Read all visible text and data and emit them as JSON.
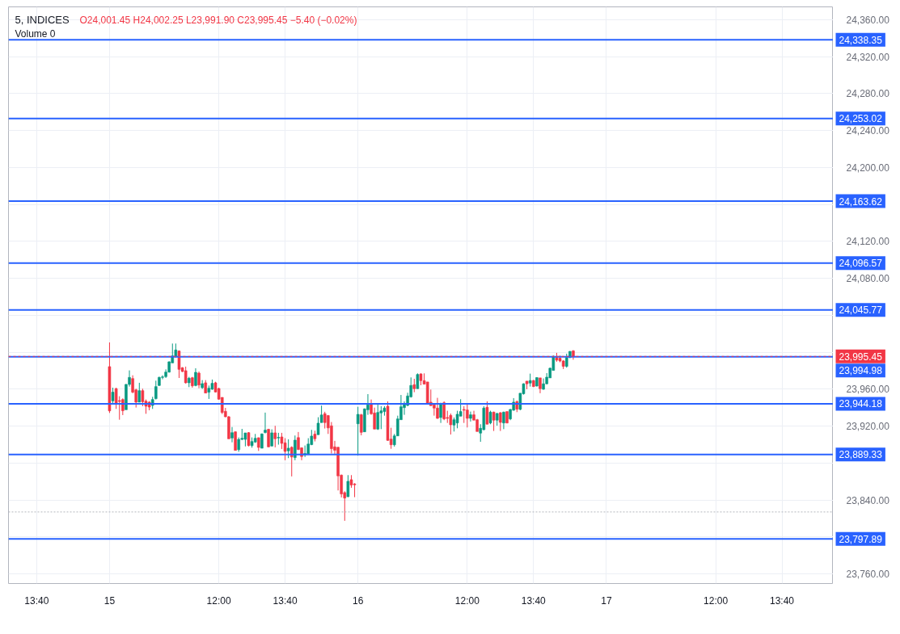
{
  "chart_data": {
    "type": "candlestick",
    "title": "5, INDICES",
    "annotations": [
      "O24,001.45 H24,002.25 L23,991.90 C23,995.45 −5.40 (−0.02%)",
      "Volume 0"
    ],
    "categories": [
      null,
      null,
      null,
      null,
      null,
      null,
      null,
      null,
      "13:40",
      null,
      null,
      null,
      null,
      null,
      null,
      null,
      null,
      null,
      null,
      null,
      null,
      null,
      null,
      null,
      null,
      null,
      null,
      null,
      null,
      null,
      "15",
      null,
      null,
      null,
      null,
      null,
      null,
      null,
      null,
      null,
      null,
      null,
      null,
      null,
      null,
      null,
      null,
      null,
      null,
      null,
      null,
      null,
      null,
      null,
      null,
      null,
      null,
      null,
      null,
      null,
      null,
      null,
      null,
      "12:00",
      null,
      null,
      null,
      null,
      null,
      null,
      null,
      null,
      null,
      null,
      null,
      null,
      null,
      null,
      null,
      null,
      null,
      null,
      null,
      "13:40",
      null,
      null,
      null,
      null,
      null,
      null,
      null,
      null,
      null,
      null,
      null,
      null,
      null,
      null,
      null,
      null,
      null,
      null,
      null,
      null,
      null,
      "16",
      null,
      null,
      null,
      null,
      null,
      null,
      null,
      null,
      null,
      null,
      null,
      null,
      null,
      null,
      null,
      null,
      null,
      null,
      null,
      null,
      null,
      null,
      null,
      null,
      null,
      null,
      null,
      null,
      null,
      null,
      null,
      null,
      "12:00",
      null,
      null,
      null,
      null,
      null,
      null,
      null,
      null,
      null,
      null,
      null,
      null,
      null,
      null,
      null,
      null,
      null,
      null,
      null,
      "13:40",
      null,
      null,
      null,
      null,
      null,
      null,
      null,
      null,
      null,
      null,
      null,
      null,
      null,
      null,
      null,
      null,
      null,
      null,
      null,
      null,
      null,
      "17",
      null,
      null,
      null,
      null,
      null,
      null,
      null,
      null,
      null,
      null,
      null,
      null,
      null,
      null,
      null,
      null,
      null,
      null,
      null,
      null,
      null,
      null,
      null,
      null,
      null,
      null,
      null,
      null,
      null,
      null,
      null,
      null,
      "12:00",
      null,
      null,
      null,
      null,
      null,
      null,
      null,
      null,
      null,
      null,
      null,
      null,
      null,
      null,
      null,
      null,
      null,
      null,
      null,
      "13:40",
      null,
      null,
      null,
      null,
      null,
      null,
      null,
      null,
      null,
      null,
      null,
      null,
      null,
      null,
      null
    ],
    "ohlc": [
      null,
      null,
      null,
      null,
      null,
      null,
      null,
      null,
      null,
      null,
      null,
      null,
      null,
      null,
      null,
      null,
      null,
      null,
      null,
      null,
      null,
      null,
      null,
      null,
      null,
      null,
      null,
      null,
      null,
      null,
      [
        23984.4,
        24010.6,
        23934.2,
        23936.5
      ],
      [
        23947.3,
        23961.6,
        23944.4,
        23956.7
      ],
      [
        23960.5,
        23961.6,
        23938.6,
        23944.4
      ],
      [
        23947.6,
        23952.3,
        23926.9,
        23946.7
      ],
      [
        23948.8,
        23950.0,
        23931.9,
        23936.6
      ],
      [
        23937.7,
        23965.7,
        23937.7,
        23965.1
      ],
      [
        23965.1,
        23980.3,
        23962.8,
        23972.7
      ],
      [
        23971.5,
        23975.0,
        23955.5,
        23956.7
      ],
      [
        23959.3,
        23960.5,
        23940.1,
        23945.9
      ],
      [
        23945.9,
        23966.9,
        23945.9,
        23958.4
      ],
      [
        23958.4,
        23960.5,
        23941.5,
        23946.4
      ],
      [
        23947.0,
        23948.8,
        23933.3,
        23941.5
      ],
      [
        23945.9,
        23947.0,
        23937.1,
        23940.6
      ],
      [
        23942.4,
        23951.7,
        23938.6,
        23948.8
      ],
      [
        23949.7,
        23969.2,
        23948.8,
        23962.8
      ],
      [
        23964.0,
        23973.6,
        23963.4,
        23972.7
      ],
      [
        23972.7,
        23975.0,
        23970.7,
        23973.3
      ],
      [
        23973.6,
        23981.4,
        23972.1,
        23978.5
      ],
      [
        23978.5,
        23990.2,
        23977.9,
        23989.6
      ],
      [
        23988.4,
        24009.4,
        23988.4,
        23996.0
      ],
      [
        23994.9,
        24009.4,
        23994.3,
        24002.4
      ],
      [
        24001.3,
        24001.9,
        23972.1,
        23981.4
      ],
      [
        23983.2,
        23983.8,
        23978.5,
        23979.1
      ],
      [
        23980.0,
        23984.4,
        23966.0,
        23966.9
      ],
      [
        23966.9,
        23973.3,
        23962.2,
        23971.8
      ],
      [
        23972.4,
        23973.3,
        23961.6,
        23963.6
      ],
      [
        23963.9,
        23982.6,
        23963.1,
        23978.2
      ],
      [
        23977.4,
        23979.1,
        23961.0,
        23964.5
      ],
      [
        23961.6,
        23969.8,
        23960.2,
        23966.0
      ],
      [
        23966.9,
        23969.8,
        23955.8,
        23955.8
      ],
      [
        23956.7,
        23963.9,
        23949.4,
        23961.0
      ],
      [
        23959.9,
        23970.4,
        23959.3,
        23966.3
      ],
      [
        23966.9,
        23968.0,
        23956.4,
        23956.9
      ],
      [
        23960.7,
        23961.6,
        23948.5,
        23949.1
      ],
      [
        23951.1,
        23951.1,
        23933.0,
        23934.8
      ],
      [
        23936.0,
        23939.7,
        23929.5,
        23930.1
      ],
      [
        23930.1,
        23931.0,
        23906.2,
        23906.2
      ],
      [
        23907.1,
        23919.0,
        23902.4,
        23912.9
      ],
      [
        23913.8,
        23914.4,
        23893.7,
        23893.7
      ],
      [
        23894.5,
        23907.7,
        23892.2,
        23905.6
      ],
      [
        23905.6,
        23917.0,
        23904.7,
        23906.8
      ],
      [
        23905.6,
        23912.6,
        23898.0,
        23912.6
      ],
      [
        23912.9,
        23913.5,
        23898.0,
        23898.9
      ],
      [
        23898.9,
        23907.7,
        23896.6,
        23903.3
      ],
      [
        23902.7,
        23911.5,
        23901.8,
        23906.8
      ],
      [
        23907.4,
        23907.7,
        23893.1,
        23896.9
      ],
      [
        23896.0,
        23912.0,
        23896.0,
        23911.5
      ],
      [
        23913.0,
        23934.6,
        23912.1,
        23915.6
      ],
      [
        23916.5,
        23917.1,
        23897.0,
        23897.5
      ],
      [
        23898.4,
        23916.5,
        23898.1,
        23912.7
      ],
      [
        23912.7,
        23920.3,
        23897.0,
        23906.3
      ],
      [
        23907.2,
        23912.7,
        23899.9,
        23907.8
      ],
      [
        23908.3,
        23912.7,
        23895.2,
        23901.3
      ],
      [
        23901.9,
        23906.9,
        23883.0,
        23892.6
      ],
      [
        23893.2,
        23905.7,
        23885.3,
        23896.1
      ],
      [
        23897.0,
        23898.1,
        23865.5,
        23886.5
      ],
      [
        23885.9,
        23909.8,
        23883.0,
        23904.8
      ],
      [
        23907.5,
        23913.6,
        23894.0,
        23894.6
      ],
      [
        23896.4,
        23897.0,
        23883.0,
        23887.1
      ],
      [
        23888.8,
        23899.0,
        23886.5,
        23890.3
      ],
      [
        23889.4,
        23906.9,
        23888.8,
        23900.5
      ],
      [
        23899.9,
        23915.9,
        23899.3,
        23909.2
      ],
      [
        23911.3,
        23915.0,
        23903.4,
        23906.3
      ],
      [
        23910.7,
        23929.6,
        23910.7,
        23923.2
      ],
      [
        23923.8,
        23942.2,
        23923.8,
        23932.0
      ],
      [
        23933.4,
        23935.5,
        23917.4,
        23923.8
      ],
      [
        23931.4,
        23932.0,
        23911.5,
        23918.0
      ],
      [
        23920.3,
        23924.4,
        23890.3,
        23895.5
      ],
      [
        23897.5,
        23904.0,
        23888.8,
        23893.8
      ],
      [
        23897.0,
        23897.5,
        23850.3,
        23866.1
      ],
      [
        23866.9,
        23867.5,
        23842.7,
        23846.5
      ],
      [
        23848.0,
        23849.4,
        23817.4,
        23842.1
      ],
      [
        23843.6,
        23866.9,
        23843.0,
        23860.2
      ],
      [
        23862.0,
        23866.9,
        23853.2,
        23856.1
      ],
      [
        23857.3,
        23858.2,
        23843.0,
        23856.4
      ],
      [
        23922.5,
        23940.9,
        23888.0,
        23932.7
      ],
      [
        23932.2,
        23933.3,
        23910.0,
        23913.2
      ],
      [
        23913.8,
        23939.2,
        23913.8,
        23938.6
      ],
      [
        23937.7,
        23954.6,
        23932.2,
        23943.0
      ],
      [
        23944.4,
        23948.8,
        23932.2,
        23933.3
      ],
      [
        23934.2,
        23940.0,
        23916.7,
        23916.7
      ],
      [
        23916.7,
        23943.5,
        23915.8,
        23934.8
      ],
      [
        23934.2,
        23941.5,
        23916.7,
        23936.5
      ],
      [
        23935.7,
        23941.5,
        23931.3,
        23939.5
      ],
      [
        23941.5,
        23946.7,
        23904.2,
        23904.5
      ],
      [
        23905.9,
        23918.2,
        23895.4,
        23899.8
      ],
      [
        23899.8,
        23911.5,
        23897.8,
        23909.4
      ],
      [
        23909.4,
        23931.3,
        23909.4,
        23927.8
      ],
      [
        23926.9,
        23953.7,
        23926.9,
        23940.9
      ],
      [
        23940.0,
        23946.7,
        23932.2,
        23943.8
      ],
      [
        23942.4,
        23956.1,
        23941.5,
        23952.6
      ],
      [
        23951.7,
        23972.7,
        23950.8,
        23964.0
      ],
      [
        23964.8,
        23971.2,
        23956.7,
        23960.5
      ],
      [
        23960.5,
        23977.1,
        23960.5,
        23975.9
      ],
      [
        23976.5,
        23977.1,
        23964.2,
        23969.2
      ],
      [
        23969.2,
        23977.1,
        23965.4,
        23965.4
      ],
      [
        23967.8,
        23967.8,
        23944.4,
        23945.0
      ],
      [
        23945.9,
        23959.6,
        23942.1,
        23942.1
      ],
      [
        23943.0,
        23944.4,
        23931.3,
        23939.5
      ],
      [
        23939.5,
        23950.6,
        23927.8,
        23928.4
      ],
      [
        23929.3,
        23945.3,
        23923.4,
        23944.4
      ],
      [
        23945.3,
        23946.8,
        23926.4,
        23927.8
      ],
      [
        23929.3,
        23936.6,
        23923.4,
        23928.4
      ],
      [
        23931.6,
        23933.6,
        23910.9,
        23921.4
      ],
      [
        23921.1,
        23929.3,
        23914.1,
        23926.9
      ],
      [
        23923.4,
        23936.6,
        23917.6,
        23932.8
      ],
      [
        23930.7,
        23949.1,
        23930.7,
        23935.7
      ],
      [
        23938.0,
        23941.5,
        23923.4,
        23937.2
      ],
      [
        23937.4,
        23943.3,
        23918.5,
        23928.4
      ],
      [
        23928.4,
        23935.7,
        23924.9,
        23932.2
      ],
      [
        23932.2,
        23936.6,
        23926.4,
        23926.4
      ],
      [
        23926.9,
        23927.8,
        23914.1,
        23914.1
      ],
      [
        23912.4,
        23922.0,
        23903.0,
        23917.6
      ],
      [
        23916.2,
        23941.5,
        23915.3,
        23939.5
      ],
      [
        23940.4,
        23946.8,
        23922.0,
        23922.0
      ],
      [
        23923.4,
        23936.6,
        23922.0,
        23935.1
      ],
      [
        23935.1,
        23935.7,
        23914.7,
        23926.4
      ],
      [
        23926.4,
        23934.5,
        23920.5,
        23933.6
      ],
      [
        23934.5,
        23935.1,
        23914.7,
        23924.0
      ],
      [
        23923.4,
        23935.7,
        23916.7,
        23935.1
      ],
      [
        23935.7,
        23935.7,
        23922.9,
        23923.4
      ],
      [
        23927.8,
        23938.6,
        23926.4,
        23938.0
      ],
      [
        23937.2,
        23950.3,
        23936.6,
        23945.9
      ],
      [
        23946.5,
        23947.7,
        23935.1,
        23938.3
      ],
      [
        23938.1,
        23955.6,
        23937.2,
        23955.6
      ],
      [
        23955.0,
        23966.3,
        23954.1,
        23965.8
      ],
      [
        23968.7,
        23968.7,
        23959.9,
        23965.8
      ],
      [
        23966.6,
        23976.8,
        23962.8,
        23969.3
      ],
      [
        23969.3,
        23970.1,
        23962.3,
        23962.8
      ],
      [
        23963.4,
        23973.0,
        23962.8,
        23972.5
      ],
      [
        23972.2,
        23972.2,
        23955.6,
        23960.5
      ],
      [
        23959.9,
        23971.6,
        23959.3,
        23965.8
      ],
      [
        23965.8,
        23977.4,
        23965.2,
        23973.0
      ],
      [
        23972.2,
        23983.3,
        23972.2,
        23982.7
      ],
      [
        23980.3,
        23996.4,
        23980.3,
        23995.5
      ],
      [
        23994.3,
        23999.3,
        23989.7,
        23991.4
      ],
      [
        23993.5,
        23996.4,
        23989.1,
        23990.5
      ],
      [
        23990.5,
        23991.4,
        23981.8,
        23984.7
      ],
      [
        23984.7,
        23998.4,
        23983.3,
        23994.3
      ],
      [
        23994.3,
        24001.2,
        23993.5,
        24000.9
      ],
      [
        24001.45,
        24002.25,
        23991.9,
        23995.45
      ],
      null,
      null,
      null,
      null,
      null,
      null,
      null,
      null,
      null,
      null,
      null,
      null,
      null,
      null,
      null,
      null,
      null,
      null,
      null,
      null,
      null,
      null,
      null,
      null,
      null,
      null,
      null,
      null,
      null,
      null,
      null,
      null,
      null,
      null,
      null,
      null,
      null,
      null,
      null,
      null,
      null,
      null,
      null,
      null,
      null,
      null,
      null,
      null,
      null,
      null,
      null,
      null,
      null,
      null,
      null,
      null,
      null,
      null,
      null,
      null,
      null,
      null,
      null,
      null,
      null,
      null,
      null,
      null,
      null,
      null,
      null,
      null,
      null,
      null,
      null,
      null,
      null,
      null
    ],
    "colors": [
      null,
      null,
      null,
      null,
      null,
      null,
      null,
      null,
      null,
      null,
      null,
      null,
      null,
      null,
      null,
      null,
      null,
      null,
      null,
      null,
      null,
      null,
      null,
      null,
      null,
      null,
      null,
      null,
      null,
      null,
      "#f23645",
      "#089981",
      "#f23645",
      "#f23645",
      "#f23645",
      "#089981",
      "#089981",
      "#f23645",
      "#f23645",
      "#089981",
      "#f23645",
      "#f23645",
      "#f23645",
      "#089981",
      "#089981",
      "#089981",
      "#089981",
      "#089981",
      "#089981",
      "#089981",
      "#089981",
      "#f23645",
      "#f23645",
      "#f23645",
      "#089981",
      "#f23645",
      "#089981",
      "#f23645",
      "#089981",
      "#f23645",
      "#089981",
      "#089981",
      "#f23645",
      "#f23645",
      "#f23645",
      "#f23645",
      "#f23645",
      "#089981",
      "#f23645",
      "#089981",
      "#089981",
      "#089981",
      "#f23645",
      "#089981",
      "#089981",
      "#f23645",
      "#089981",
      "#089981",
      "#f23645",
      "#089981",
      "#f23645",
      "#089981",
      "#f23645",
      "#f23645",
      "#089981",
      "#f23645",
      "#089981",
      "#f23645",
      "#f23645",
      "#089981",
      "#089981",
      "#089981",
      "#f23645",
      "#089981",
      "#089981",
      "#f23645",
      "#f23645",
      "#f23645",
      "#f23645",
      "#f23645",
      "#f23645",
      "#f23645",
      "#089981",
      "#f23645",
      "#f23645",
      "#089981",
      "#f23645",
      "#089981",
      "#089981",
      "#f23645",
      "#f23645",
      "#089981",
      "#089981",
      "#089981",
      "#f23645",
      "#f23645",
      "#089981",
      "#089981",
      "#089981",
      "#089981",
      "#089981",
      "#089981",
      "#f23645",
      "#089981",
      "#f23645",
      "#f23645",
      "#f23645",
      "#f23645",
      "#f23645",
      "#f23645",
      "#089981",
      "#f23645",
      "#f23645",
      "#f23645",
      "#089981",
      "#089981",
      "#089981",
      "#f23645",
      "#f23645",
      "#089981",
      "#f23645",
      "#f23645",
      "#089981",
      "#089981",
      "#f23645",
      "#089981",
      "#f23645",
      "#089981",
      "#f23645",
      "#089981",
      "#f23645",
      "#089981",
      "#089981",
      "#f23645",
      "#089981",
      "#089981",
      "#f23645",
      "#089981",
      "#f23645",
      "#089981",
      "#f23645",
      "#089981",
      "#089981",
      "#089981",
      "#089981",
      "#f23645",
      "#f23645",
      "#f23645",
      "#089981",
      "#089981",
      "#f23645",
      null,
      null,
      null,
      null,
      null,
      null,
      null,
      null,
      null,
      null,
      null,
      null,
      null,
      null,
      null,
      null,
      null,
      null,
      null,
      null,
      null,
      null,
      null,
      null,
      null,
      null,
      null,
      null,
      null,
      null,
      null,
      null,
      null,
      null,
      null,
      null,
      null,
      null,
      null,
      null,
      null,
      null,
      null,
      null,
      null,
      null,
      null,
      null,
      null,
      null,
      null,
      null,
      null,
      null,
      null,
      null,
      null,
      null,
      null,
      null,
      null,
      null,
      null,
      null,
      null,
      null,
      null,
      null,
      null,
      null,
      null,
      null,
      null,
      null,
      null,
      null,
      null,
      null
    ],
    "ylim": [
      23749.5,
      24374.0
    ],
    "yticks": [
      {
        "value": 24360,
        "label": "24,360.00"
      },
      {
        "value": 24320,
        "label": "24,320.00"
      },
      {
        "value": 24280,
        "label": "24,280.00"
      },
      {
        "value": 24240,
        "label": "24,240.00"
      },
      {
        "value": 24200,
        "label": "24,200.00"
      },
      {
        "value": 24160,
        "label": null
      },
      {
        "value": 24120,
        "label": "24,120.00"
      },
      {
        "value": 24080,
        "label": "24,080.00"
      },
      {
        "value": 24040,
        "label": null
      },
      {
        "value": 24000,
        "label": null
      },
      {
        "value": 23960,
        "label": "23,960.00"
      },
      {
        "value": 23920,
        "label": "23,920.00"
      },
      {
        "value": 23880,
        "label": null
      },
      {
        "value": 23840,
        "label": "23,840.00"
      },
      {
        "value": 23800,
        "label": null
      },
      {
        "value": 23760,
        "label": "23,760.00"
      }
    ],
    "ref_lines": [
      {
        "axis": "y",
        "value": 24338.35,
        "label": "24,338.35",
        "color": "#2962ff"
      },
      {
        "axis": "y",
        "value": 24253.02,
        "label": "24,253.02",
        "color": "#2962ff"
      },
      {
        "axis": "y",
        "value": 24163.62,
        "label": "24,163.62",
        "color": "#2962ff"
      },
      {
        "axis": "y",
        "value": 24096.57,
        "label": "24,096.57",
        "color": "#2962ff"
      },
      {
        "axis": "y",
        "value": 24045.77,
        "label": "24,045.77",
        "color": "#2962ff"
      },
      {
        "axis": "y",
        "value": 23995.45,
        "label": "23,995.45",
        "color": "#f23645",
        "line_style": "dashed"
      },
      {
        "axis": "y",
        "value": 23994.98,
        "label": "23,994.98",
        "color": "#2962ff"
      },
      {
        "axis": "y",
        "value": 23944.18,
        "label": "23,944.18",
        "color": "#2962ff"
      },
      {
        "axis": "y",
        "value": 23889.33,
        "label": "23,889.33",
        "color": "#2962ff"
      },
      {
        "axis": "y",
        "value": 23797.89,
        "label": "23,797.89",
        "color": "#2962ff"
      },
      {
        "axis": "y",
        "value": 23827,
        "color": "#b2b5be",
        "line_style": "dotted"
      }
    ],
    "grid": true
  }
}
